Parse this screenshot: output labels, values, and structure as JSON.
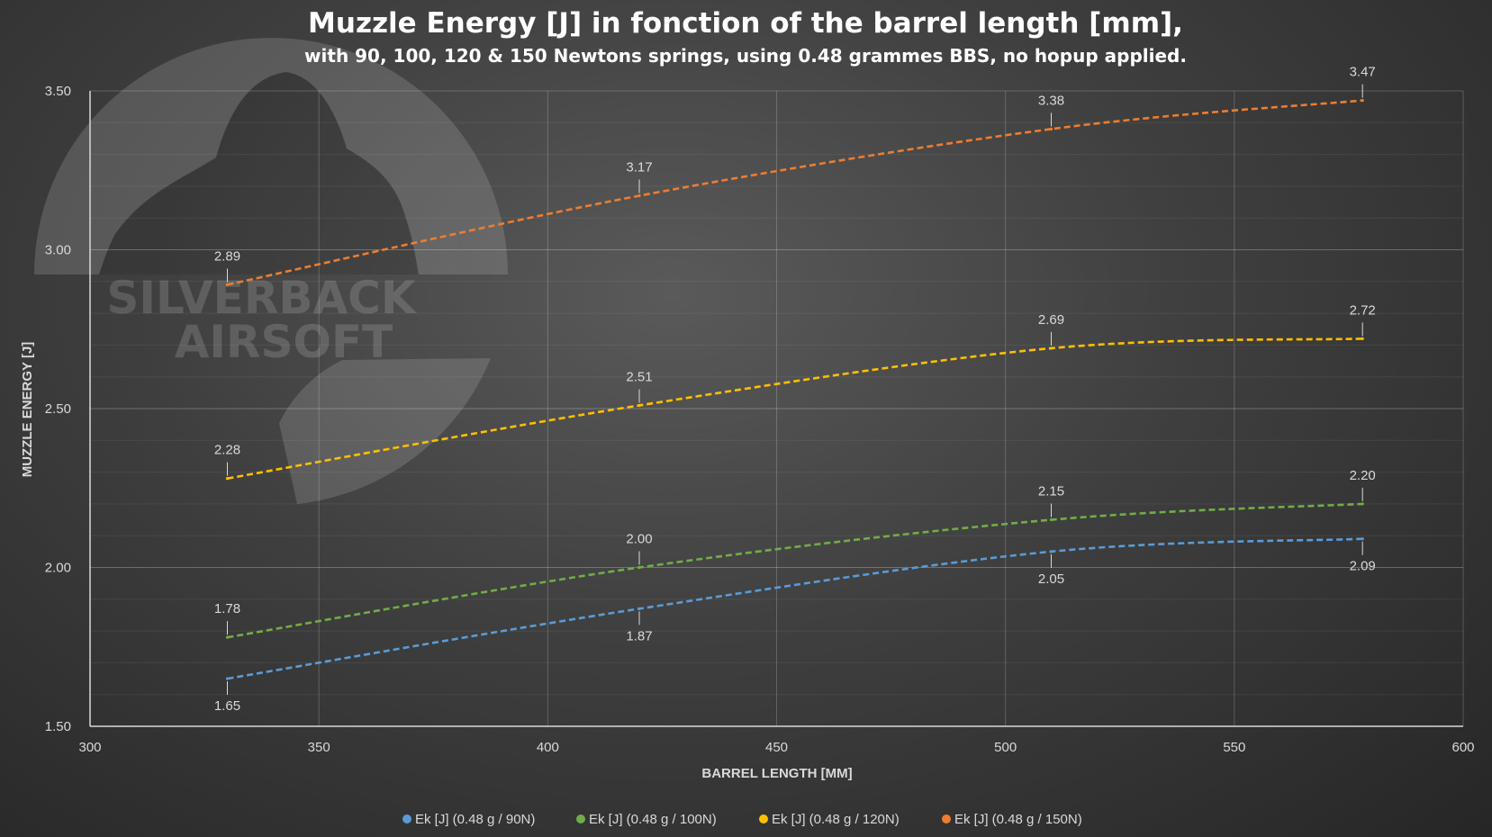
{
  "chart_data": {
    "type": "line",
    "title": "Muzzle Energy [J] in fonction of the barrel length [mm],",
    "subtitle": "with 90, 100, 120 & 150 Newtons springs, using 0.48 grammes BBS, no hopup applied.",
    "xlabel": "BARREL LENGTH [MM]",
    "ylabel": "MUZZLE ENERGY [J]",
    "xlim": [
      300,
      600
    ],
    "ylim": [
      1.5,
      3.5
    ],
    "x_ticks": [
      "300",
      "350",
      "400",
      "450",
      "500",
      "550",
      "600"
    ],
    "y_ticks": [
      "1.50",
      "2.00",
      "2.50",
      "3.00",
      "3.50"
    ],
    "x": [
      330,
      420,
      510,
      578
    ],
    "grid": true,
    "legend_position": "bottom",
    "series": [
      {
        "name": "Ek [J] (0.48 g / 90N)",
        "color": "#5b9bd5",
        "values": [
          1.65,
          1.87,
          2.05,
          2.09
        ],
        "labels": [
          "1.65",
          "1.87",
          "2.05",
          "2.09"
        ],
        "label_side": "below"
      },
      {
        "name": "Ek [J] (0.48 g / 100N)",
        "color": "#70ad47",
        "values": [
          1.78,
          2.0,
          2.15,
          2.2
        ],
        "labels": [
          "1.78",
          "2.00",
          "2.15",
          "2.20"
        ],
        "label_side": "above"
      },
      {
        "name": "Ek [J] (0.48 g / 120N)",
        "color": "#ffc000",
        "values": [
          2.28,
          2.51,
          2.69,
          2.72
        ],
        "labels": [
          "2.28",
          "2.51",
          "2.69",
          "2.72"
        ],
        "label_side": "above"
      },
      {
        "name": "Ek [J] (0.48 g / 150N)",
        "color": "#ed7d31",
        "values": [
          2.89,
          3.17,
          3.38,
          3.47
        ],
        "labels": [
          "2.89",
          "3.17",
          "3.38",
          "3.47"
        ],
        "label_side": "above"
      }
    ],
    "watermark_text": [
      "SILVERBACK",
      "AIRSOFT"
    ]
  }
}
